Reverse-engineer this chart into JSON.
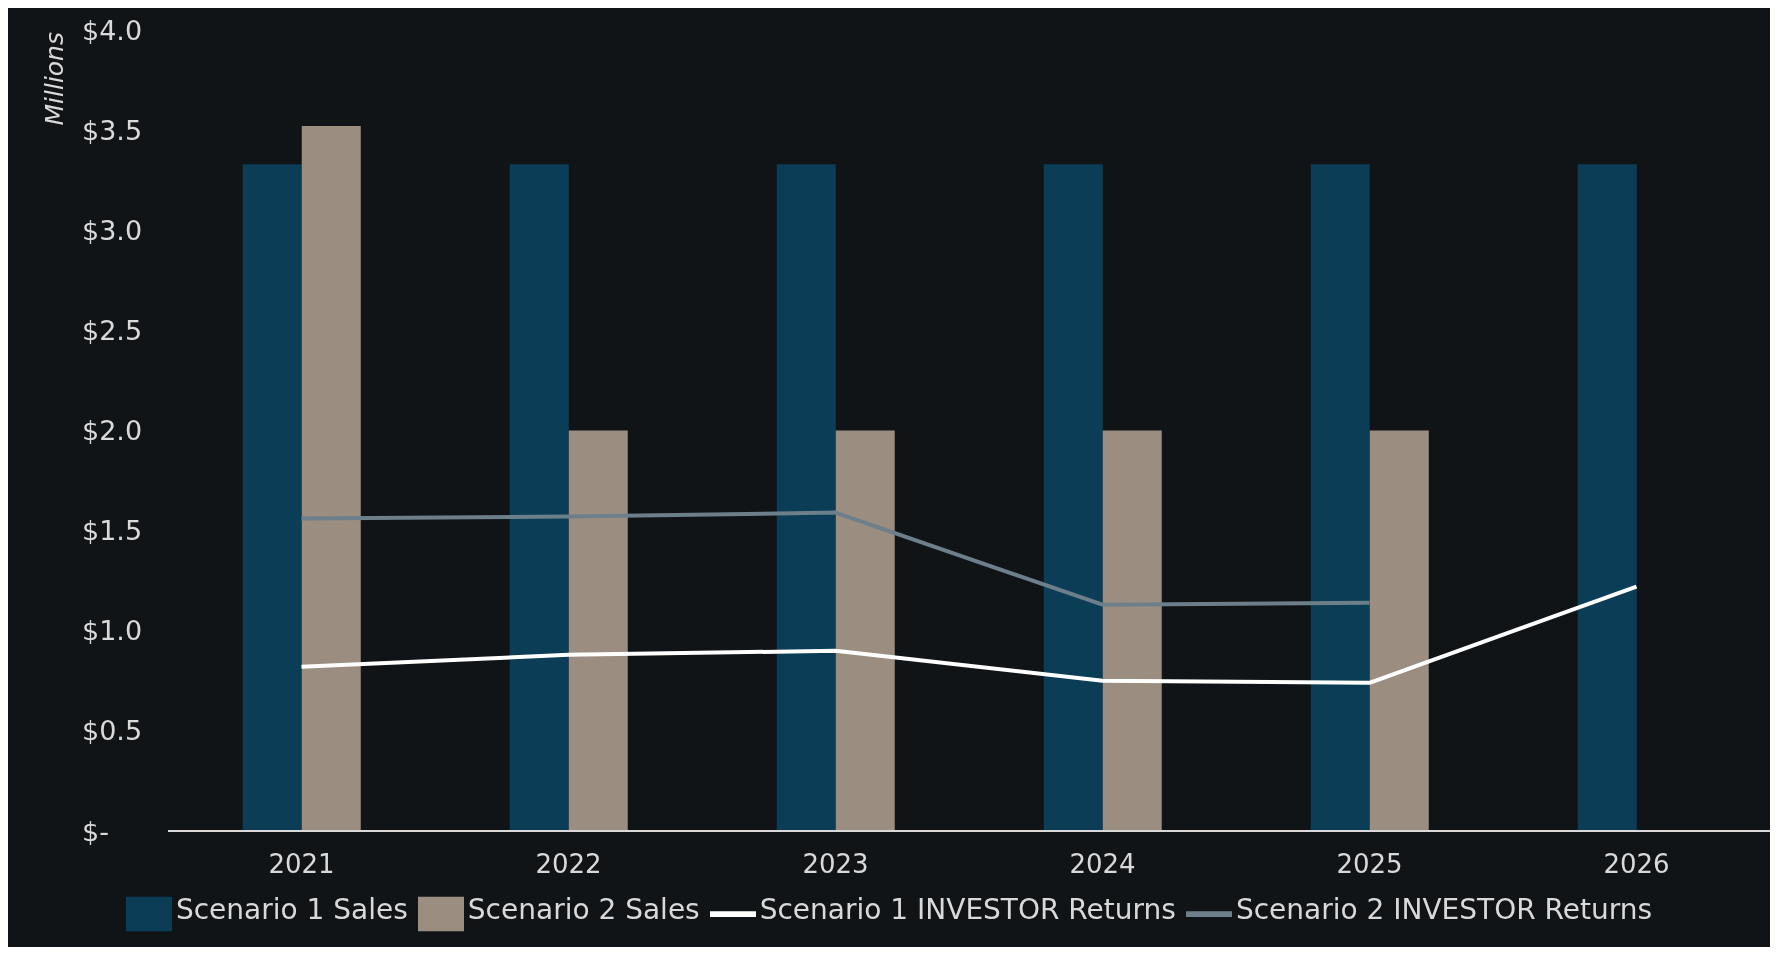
{
  "chart_data": {
    "type": "bar",
    "ylabel": "Millions",
    "categories": [
      "2021",
      "2022",
      "2023",
      "2024",
      "2025",
      "2026"
    ],
    "series": [
      {
        "name": "Scenario 1 Sales",
        "color": "#0b3d56",
        "values": [
          3.33,
          3.33,
          3.33,
          3.33,
          3.33,
          3.33
        ]
      },
      {
        "name": "Scenario 2 Sales",
        "color": "#9b8e80",
        "values": [
          3.52,
          2.0,
          2.0,
          2.0,
          2.0,
          null
        ]
      },
      {
        "name": "Scenario 1 INVESTOR Returns",
        "type": "line",
        "color": "#ffffff",
        "values": [
          0.82,
          0.88,
          0.9,
          0.75,
          0.74,
          1.22
        ]
      },
      {
        "name": "Scenario 2 INVESTOR Returns",
        "type": "line",
        "color": "#6c7f8a",
        "values": [
          1.56,
          1.57,
          1.59,
          1.13,
          1.14,
          null
        ]
      }
    ],
    "ylim": [
      0,
      4
    ],
    "yticks": [
      {
        "value": 0,
        "label": "$-"
      },
      {
        "value": 0.5,
        "label": "$0.5"
      },
      {
        "value": 1,
        "label": "$1.0"
      },
      {
        "value": 1.5,
        "label": "$1.5"
      },
      {
        "value": 2,
        "label": "$2.0"
      },
      {
        "value": 2.5,
        "label": "$2.5"
      },
      {
        "value": 3,
        "label": "$3.0"
      },
      {
        "value": 3.5,
        "label": "$3.5"
      },
      {
        "value": 4,
        "label": "$4.0"
      }
    ],
    "grid": false,
    "legend": "bottom",
    "marker": "none",
    "line_style": "solid"
  }
}
